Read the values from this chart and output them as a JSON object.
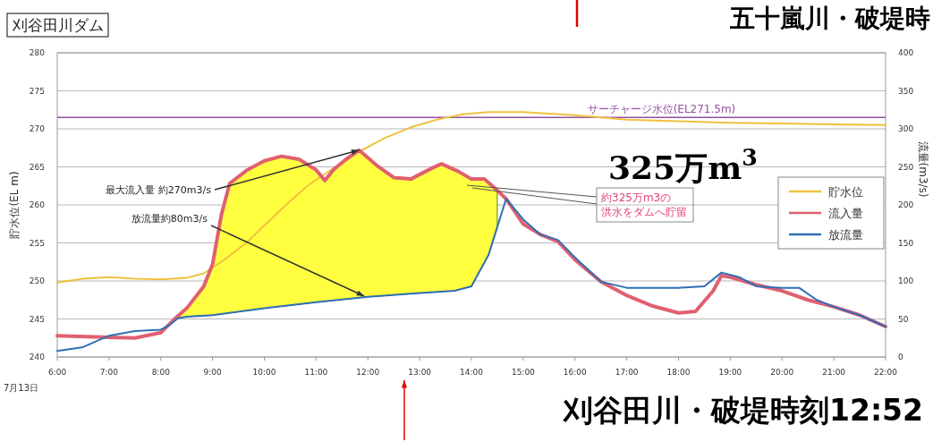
{
  "chart_data": {
    "type": "line",
    "title": "刈谷田川ダム",
    "ylabel": "貯水位(EL m)",
    "y2label": "流量(m3/s)",
    "xlim": [
      6,
      22
    ],
    "xticks": [
      {
        "value": 6,
        "label": "6:00"
      },
      {
        "value": 7,
        "label": "7:00"
      },
      {
        "value": 8,
        "label": "8:00"
      },
      {
        "value": 9,
        "label": "9:00"
      },
      {
        "value": 10,
        "label": "10:00"
      },
      {
        "value": 11,
        "label": "11:00"
      },
      {
        "value": 12,
        "label": "12:00"
      },
      {
        "value": 13,
        "label": "13:00"
      },
      {
        "value": 14,
        "label": "14:00"
      },
      {
        "value": 15,
        "label": "15:00"
      },
      {
        "value": 16,
        "label": "16:00"
      },
      {
        "value": 17,
        "label": "17:00"
      },
      {
        "value": 18,
        "label": "18:00"
      },
      {
        "value": 19,
        "label": "19:00"
      },
      {
        "value": 20,
        "label": "20:00"
      },
      {
        "value": 21,
        "label": "21:00"
      },
      {
        "value": 22,
        "label": "22:00"
      }
    ],
    "ylim": [
      240,
      280
    ],
    "yticks": [
      240,
      245,
      250,
      255,
      260,
      265,
      270,
      275,
      280
    ],
    "y2lim": [
      0,
      400
    ],
    "y2ticks": [
      0,
      50,
      100,
      150,
      200,
      250,
      300,
      350,
      400
    ],
    "grid": "y",
    "legend": "right",
    "marker": "none",
    "series": [
      {
        "name": "貯水位",
        "color": "#f0c040",
        "x": [
          6,
          6.5,
          7,
          7.5,
          8,
          8.5,
          8.83,
          9.17,
          9.65,
          10,
          10.42,
          10.83,
          11.37,
          11.83,
          12.33,
          12.83,
          13.33,
          13.83,
          14.33,
          15,
          16,
          17,
          18,
          19,
          20,
          21,
          22
        ],
        "values": [
          249.8,
          250.3,
          250.5,
          250.3,
          250.2,
          250.4,
          251,
          252.5,
          255,
          257.3,
          260,
          262.5,
          265,
          267,
          268.8,
          270.2,
          271.2,
          271.9,
          272.2,
          272.2,
          271.8,
          271.2,
          271,
          270.8,
          270.7,
          270.6,
          270.5
        ]
      },
      {
        "name": "流入量",
        "color": "#e06070",
        "axis": "y2",
        "x": [
          6,
          7,
          7.5,
          8,
          8.25,
          8.5,
          8.83,
          9,
          9.17,
          9.33,
          9.67,
          10,
          10.33,
          10.67,
          11,
          11.17,
          11.33,
          11.58,
          11.83,
          12.17,
          12.5,
          12.83,
          13.17,
          13.42,
          13.75,
          14,
          14.25,
          14.5,
          14.67,
          15,
          15.33,
          15.67,
          16,
          16.5,
          17,
          17.5,
          18,
          18.33,
          18.67,
          18.83,
          19,
          19.5,
          20,
          20.5,
          21,
          21.5,
          22
        ],
        "values": [
          28,
          26,
          25,
          32,
          49,
          64,
          93,
          122,
          187,
          228,
          246,
          258,
          264,
          260,
          246,
          232,
          246,
          260,
          272,
          252,
          236,
          234,
          246,
          254,
          244,
          234,
          234,
          219,
          208,
          175,
          161,
          152,
          128,
          99,
          81,
          67,
          58,
          60,
          87,
          107,
          105,
          95,
          87,
          75,
          66,
          55,
          40
        ]
      },
      {
        "name": "放流量",
        "color": "#2f6fb5",
        "axis": "y2",
        "x": [
          6,
          6.5,
          7,
          7.5,
          8,
          8.17,
          8.33,
          8.5,
          9,
          10,
          11,
          12,
          13,
          13.67,
          14,
          14.33,
          14.67,
          15,
          15.33,
          15.67,
          16,
          16.5,
          17,
          18,
          18.5,
          18.83,
          19.17,
          19.5,
          20,
          20.33,
          20.67,
          21,
          21.5,
          22
        ],
        "values": [
          8,
          13,
          28,
          34,
          36,
          42,
          51,
          53,
          55,
          64,
          72,
          79,
          84,
          87,
          93,
          134,
          208,
          181,
          161,
          154,
          131,
          99,
          91,
          91,
          93,
          111,
          105,
          93,
          91,
          91,
          75,
          66,
          55,
          40
        ]
      }
    ],
    "ref_lines": [
      {
        "axis": "y",
        "value": 271.5,
        "label": "サーチャージ水位(EL271.5m)",
        "color": "#9050a0"
      }
    ],
    "annotations": [
      "7月13日",
      {
        "text": "最大流入量 約270m3/s",
        "x": 11.83,
        "y": 267.2
      },
      {
        "text": "放流量約80m3/s",
        "x": 11.93,
        "y": 248
      },
      "325万m$^{3}$",
      "約325万m3の洪水をダムへ貯留",
      "刈谷田川・破堤時刻12:52",
      "五十嵐川・破堤時"
    ]
  }
}
